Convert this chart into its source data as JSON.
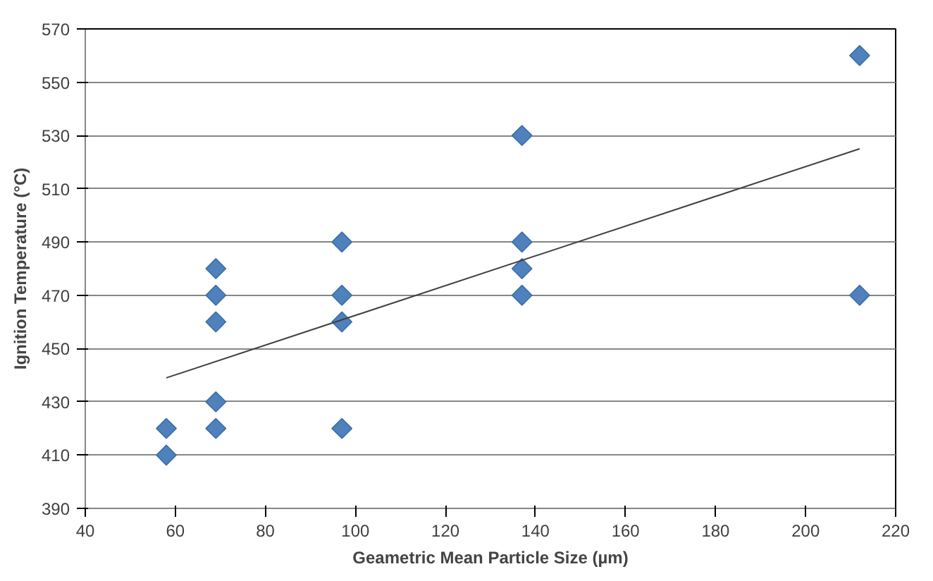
{
  "chart_data": {
    "type": "scatter",
    "xlabel": "Geametric Mean Particle Size (µm)",
    "ylabel": "Ignition Temperature (°C)",
    "xlim": [
      40,
      220
    ],
    "xticks": [
      40,
      60,
      80,
      100,
      120,
      140,
      160,
      180,
      200,
      220
    ],
    "ylim": [
      390,
      570
    ],
    "yticks": [
      390,
      410,
      430,
      450,
      470,
      490,
      510,
      530,
      550,
      570
    ],
    "grid": "y",
    "marker": "diamond",
    "series": [
      {
        "color": "#4f81bd",
        "x": [
          58,
          58,
          69,
          69,
          69,
          69,
          69,
          97,
          97,
          97,
          97,
          137,
          137,
          137,
          137,
          212,
          212
        ],
        "values": [
          420,
          410,
          480,
          470,
          460,
          430,
          420,
          490,
          470,
          460,
          420,
          530,
          490,
          480,
          470,
          560,
          470
        ]
      },
      {
        "type": "line",
        "marker": "none",
        "color": "#404040",
        "x": [
          58,
          212
        ],
        "values": [
          439,
          525
        ]
      }
    ]
  }
}
